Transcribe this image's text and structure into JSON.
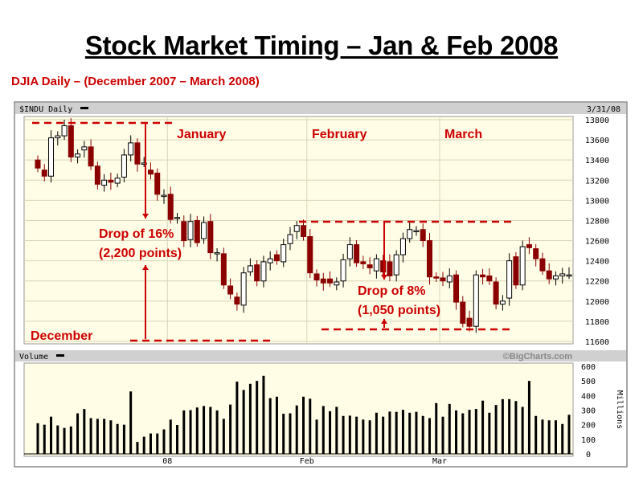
{
  "title": "Stock Market Timing – Jan & Feb 2008",
  "subtitle": "DJIA Daily – (December 2007 – March 2008)",
  "chart_data": [
    {
      "type": "candlestick",
      "header_left": "$INDU Daily",
      "header_right": "3/31/08",
      "ylim": [
        11600,
        13800
      ],
      "y_ticks": [
        "13,800",
        "13,600",
        "13,400",
        "13,200",
        "13,000",
        "12,800",
        "12,600",
        "12,400",
        "12,200",
        "12,000",
        "11,800",
        "11,600"
      ],
      "y_tick_values": [
        13800,
        13600,
        13400,
        13200,
        13000,
        12800,
        12600,
        12400,
        12200,
        12000,
        11800,
        11600
      ],
      "grid": true,
      "colors": {
        "up": "#ffffff",
        "down": "#8b0000",
        "background": "#fffde6",
        "annotation": "#cc0000"
      },
      "month_start_index": {
        "08": 20,
        "Feb": 41,
        "Mar": 61
      },
      "open": [
        13400,
        13300,
        13240,
        13620,
        13640,
        13740,
        13430,
        13500,
        13530,
        13340,
        13150,
        13200,
        13170,
        13230,
        13450,
        13570,
        13370,
        13300,
        13270,
        13040,
        13060,
        12820,
        12790,
        12610,
        12800,
        12620,
        12790,
        12470,
        12470,
        12150,
        12040,
        11960,
        12290,
        12360,
        12200,
        12380,
        12460,
        12390,
        12570,
        12690,
        12750,
        12640,
        12270,
        12220,
        12220,
        12160,
        12200,
        12420,
        12560,
        12390,
        12360,
        12300,
        12400,
        12390,
        12260,
        12460,
        12620,
        12700,
        12710,
        12600,
        12240,
        12230,
        12190,
        12260,
        11990,
        11830,
        11750,
        12260,
        12250,
        12190,
        11970,
        12030,
        12440,
        12160,
        12560,
        12520,
        12420,
        12300,
        12220,
        12250,
        12260
      ],
      "close": [
        13320,
        13240,
        13620,
        13640,
        13740,
        13430,
        13460,
        13530,
        13340,
        13160,
        13200,
        13180,
        13220,
        13450,
        13570,
        13360,
        13370,
        13260,
        13060,
        13050,
        12810,
        12830,
        12600,
        12790,
        12580,
        12780,
        12480,
        12480,
        12160,
        12070,
        11970,
        12280,
        12350,
        12200,
        12390,
        12420,
        12400,
        12560,
        12660,
        12750,
        12640,
        12280,
        12210,
        12180,
        12180,
        12190,
        12410,
        12560,
        12380,
        12370,
        12330,
        12420,
        12290,
        12250,
        12460,
        12620,
        12710,
        12700,
        12600,
        12240,
        12230,
        12200,
        12250,
        11990,
        11780,
        11750,
        12260,
        12240,
        12200,
        11970,
        12000,
        12400,
        12160,
        12540,
        12530,
        12420,
        12300,
        12220,
        12250,
        12270,
        12260
      ],
      "annotations": [
        {
          "text_1": "January",
          "text_2": "February",
          "text_3": "March",
          "text_4": "December"
        },
        {
          "line1": "Drop of 16%",
          "line2": "(2,200 points)"
        },
        {
          "line1": "Drop of 8%",
          "line2": "(1,050 points)"
        }
      ]
    },
    {
      "type": "bar",
      "header_left": "Volume",
      "header_right": "©BigCharts.com",
      "ylabel": "Millions",
      "ylim": [
        0,
        600
      ],
      "y_ticks": [
        "600",
        "500",
        "400",
        "300",
        "200",
        "100",
        "0"
      ],
      "y_tick_values": [
        600,
        500,
        400,
        300,
        200,
        100,
        0
      ],
      "x_tick_labels": [
        "08",
        "Feb",
        "Mar"
      ],
      "values": [
        210,
        200,
        255,
        195,
        178,
        188,
        278,
        308,
        245,
        240,
        240,
        230,
        205,
        200,
        428,
        82,
        118,
        140,
        140,
        168,
        235,
        198,
        298,
        300,
        318,
        328,
        322,
        298,
        240,
        338,
        495,
        438,
        480,
        500,
        535,
        382,
        392,
        275,
        278,
        332,
        392,
        378,
        235,
        328,
        292,
        322,
        260,
        262,
        255,
        235,
        230,
        282,
        255,
        290,
        288,
        302,
        282,
        288,
        260,
        245,
        348,
        255,
        342,
        298,
        278,
        302,
        308,
        365,
        282,
        335,
        375,
        375,
        362,
        322,
        500,
        260,
        235,
        230,
        230,
        205,
        268
      ]
    }
  ]
}
